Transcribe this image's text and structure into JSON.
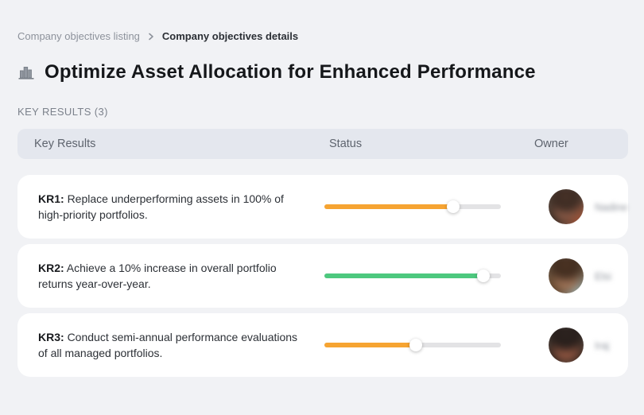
{
  "breadcrumb": {
    "items": [
      {
        "label": "Company objectives listing"
      },
      {
        "label": "Company objectives details"
      }
    ],
    "separator_icon": "chevron-right-icon"
  },
  "page": {
    "title_icon": "buildings-icon",
    "title": "Optimize Asset Allocation for Enhanced Performance",
    "section_label": "KEY RESULTS (3)"
  },
  "table": {
    "columns": [
      "Key Results",
      "Status",
      "Owner"
    ],
    "rows": [
      {
        "kr_label": "KR1:",
        "kr_text": "Replace underperforming assets in 100% of high-priority portfolios.",
        "progress_percent": 73,
        "progress_color": "#F6A432",
        "owner": "Nadine"
      },
      {
        "kr_label": "KR2:",
        "kr_text": "Achieve a 10% increase in overall portfolio returns year-over-year.",
        "progress_percent": 90,
        "progress_color": "#4DC87E",
        "owner": "Elsi"
      },
      {
        "kr_label": "KR3:",
        "kr_text": "Conduct semi-annual performance evaluations of all managed portfolios.",
        "progress_percent": 52,
        "progress_color": "#F6A432",
        "owner": "Iraj"
      }
    ]
  },
  "colors": {
    "background": "#F1F2F5",
    "card": "#FFFFFF",
    "header_band": "#E4E7EE",
    "progress_track": "#E3E3E5",
    "orange": "#F6A432",
    "green": "#4DC87E"
  }
}
